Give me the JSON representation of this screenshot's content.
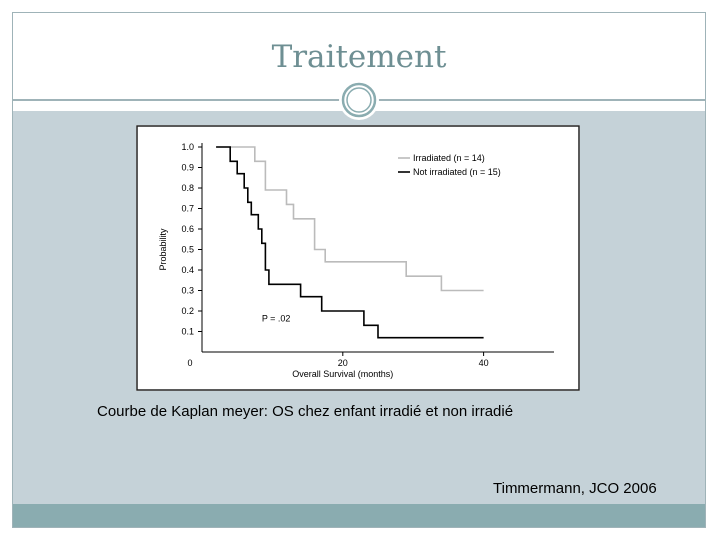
{
  "slide": {
    "title": "Traitement",
    "caption": "Courbe de Kaplan meyer: OS chez enfant irradié et non irradié",
    "citation": "Timmermann, JCO 2006"
  },
  "colors": {
    "title": "#6e8f93",
    "slide_bg": "#c5d2d8",
    "bottom_bar": "#8aacb0",
    "irradiated": "#bbbbbb",
    "not_irradiated": "#000000"
  },
  "chart_data": {
    "type": "line",
    "step": true,
    "xlabel": "Overall Survival (months)",
    "ylabel": "Probability",
    "xlim": [
      0,
      50
    ],
    "ylim": [
      0,
      1.0
    ],
    "x_ticks": [
      {
        "value": 0,
        "label": "0"
      },
      {
        "value": 20,
        "label": "20"
      },
      {
        "value": 40,
        "label": "40"
      }
    ],
    "y_ticks": [
      {
        "value": 1.0,
        "label": "1.0"
      },
      {
        "value": 0.9,
        "label": "0.9"
      },
      {
        "value": 0.8,
        "label": "0.8"
      },
      {
        "value": 0.7,
        "label": "0.7"
      },
      {
        "value": 0.6,
        "label": "0.6"
      },
      {
        "value": 0.5,
        "label": "0.5"
      },
      {
        "value": 0.4,
        "label": "0.4"
      },
      {
        "value": 0.3,
        "label": "0.3"
      },
      {
        "value": 0.2,
        "label": "0.2"
      },
      {
        "value": 0.1,
        "label": "0.1"
      }
    ],
    "annotation": "P = .02",
    "series": [
      {
        "name": "Irradiated (n = 14)",
        "color": "#bbbbbb",
        "points": [
          [
            2,
            1.0
          ],
          [
            7.5,
            1.0
          ],
          [
            7.5,
            0.93
          ],
          [
            9,
            0.93
          ],
          [
            9,
            0.79
          ],
          [
            12,
            0.79
          ],
          [
            12,
            0.72
          ],
          [
            13,
            0.72
          ],
          [
            13,
            0.65
          ],
          [
            16,
            0.65
          ],
          [
            16,
            0.5
          ],
          [
            17.5,
            0.5
          ],
          [
            17.5,
            0.44
          ],
          [
            29,
            0.44
          ],
          [
            29,
            0.37
          ],
          [
            34,
            0.37
          ],
          [
            34,
            0.3
          ],
          [
            40,
            0.3
          ]
        ]
      },
      {
        "name": "Not irradiated (n = 15)",
        "color": "#000000",
        "points": [
          [
            2,
            1.0
          ],
          [
            4,
            1.0
          ],
          [
            4,
            0.93
          ],
          [
            5,
            0.93
          ],
          [
            5,
            0.87
          ],
          [
            6,
            0.87
          ],
          [
            6,
            0.8
          ],
          [
            6.5,
            0.8
          ],
          [
            6.5,
            0.73
          ],
          [
            7,
            0.73
          ],
          [
            7,
            0.67
          ],
          [
            8,
            0.67
          ],
          [
            8,
            0.6
          ],
          [
            8.5,
            0.6
          ],
          [
            8.5,
            0.53
          ],
          [
            9,
            0.53
          ],
          [
            9,
            0.4
          ],
          [
            9.5,
            0.4
          ],
          [
            9.5,
            0.33
          ],
          [
            14,
            0.33
          ],
          [
            14,
            0.27
          ],
          [
            17,
            0.27
          ],
          [
            17,
            0.2
          ],
          [
            23,
            0.2
          ],
          [
            23,
            0.13
          ],
          [
            25,
            0.13
          ],
          [
            25,
            0.07
          ],
          [
            40,
            0.07
          ]
        ]
      }
    ]
  }
}
